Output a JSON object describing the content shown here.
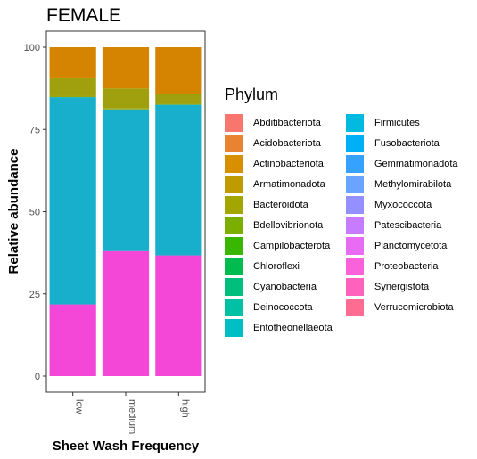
{
  "chart_data": {
    "type": "bar",
    "stacked": true,
    "title": "FEMALE",
    "xlabel": "Sheet Wash Frequency",
    "ylabel": "Relative abundance",
    "categories": [
      "low",
      "medium",
      "high"
    ],
    "ylim": [
      0,
      100
    ],
    "yticks": [
      0,
      25,
      50,
      75,
      100
    ],
    "grid": false,
    "legend_title": "Phylum",
    "legend_position": "right",
    "legend": [
      {
        "name": "Abditibacteriota",
        "color": "#F8766D"
      },
      {
        "name": "Acidobacteriota",
        "color": "#EA8331"
      },
      {
        "name": "Actinobacteriota",
        "color": "#D89000"
      },
      {
        "name": "Armatimonadota",
        "color": "#C09B00"
      },
      {
        "name": "Bacteroidota",
        "color": "#A3A500"
      },
      {
        "name": "Bdellovibrionota",
        "color": "#7CAE00"
      },
      {
        "name": "Campilobacterota",
        "color": "#39B600"
      },
      {
        "name": "Chloroflexi",
        "color": "#00BB4E"
      },
      {
        "name": "Cyanobacteria",
        "color": "#00BF7D"
      },
      {
        "name": "Deinococcota",
        "color": "#00C1A3"
      },
      {
        "name": "Entotheonellaeota",
        "color": "#00BFC4"
      },
      {
        "name": "Firmicutes",
        "color": "#00BAE0"
      },
      {
        "name": "Fusobacteriota",
        "color": "#00B0F6"
      },
      {
        "name": "Gemmatimonadota",
        "color": "#35A2FF"
      },
      {
        "name": "Methylomirabilota",
        "color": "#6BA4FF"
      },
      {
        "name": "Myxococcota",
        "color": "#9590FF"
      },
      {
        "name": "Patescibacteria",
        "color": "#C77CFF"
      },
      {
        "name": "Planctomycetota",
        "color": "#E76BF3"
      },
      {
        "name": "Proteobacteria",
        "color": "#FA62DB"
      },
      {
        "name": "Synergistota",
        "color": "#FF62BC"
      },
      {
        "name": "Verrucomicrobiota",
        "color": "#FF6C91"
      }
    ],
    "series": [
      {
        "name": "Proteobacteria",
        "color": "#F447D8",
        "values": [
          21.8,
          38.0,
          36.7
        ]
      },
      {
        "name": "Firmicutes",
        "color": "#17AFCB",
        "values": [
          63.0,
          43.1,
          45.8
        ]
      },
      {
        "name": "Bdellovibrionota",
        "color": "#97A80F",
        "values": [
          0.3,
          0.4,
          0.3
        ]
      },
      {
        "name": "Bacteroidota",
        "color": "#A0A00E",
        "values": [
          5.6,
          5.9,
          3.0
        ]
      },
      {
        "name": "Armatimonadota",
        "color": "#C09B00",
        "values": [
          0.1,
          0.1,
          0.1
        ]
      },
      {
        "name": "Actinobacteriota",
        "color": "#D48400",
        "values": [
          9.2,
          12.5,
          14.1
        ]
      }
    ]
  }
}
